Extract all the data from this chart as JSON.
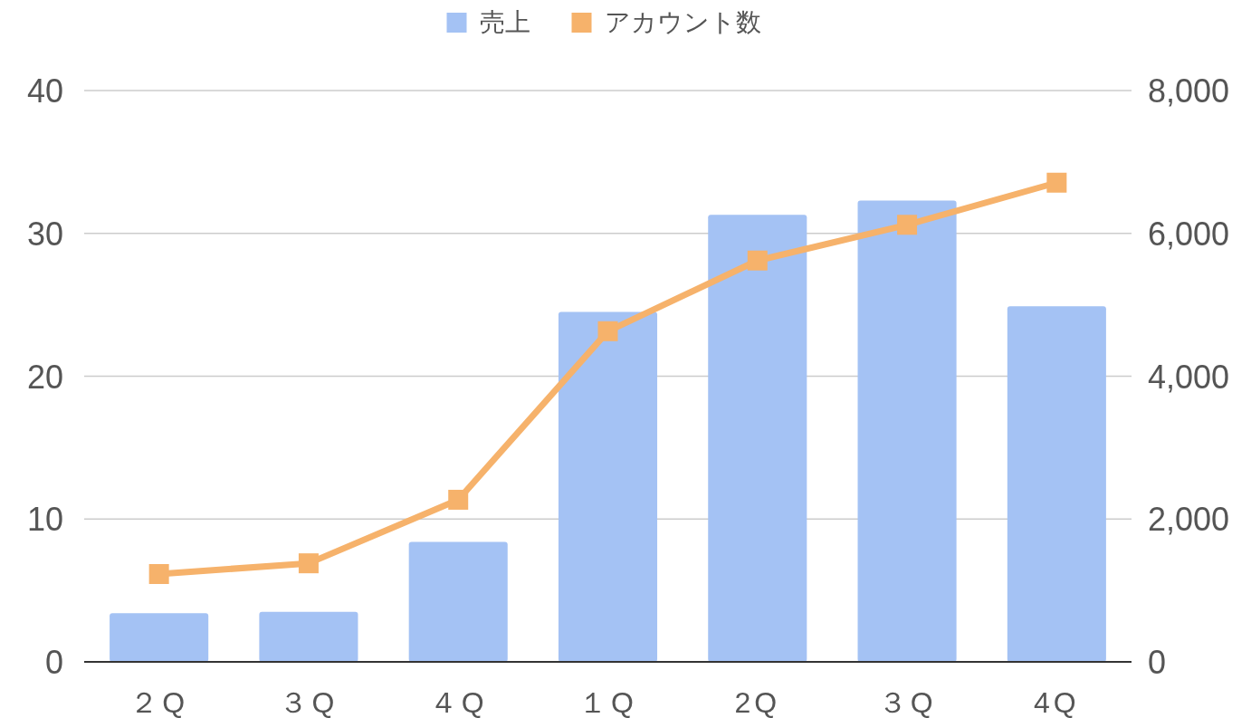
{
  "chart_data": {
    "type": "bar",
    "categories": [
      "２Q",
      "３Q",
      "４Q",
      "１Q",
      "2Q",
      "３Q",
      "4Q"
    ],
    "series": [
      {
        "name": "売上",
        "color": "#a4c2f4",
        "values": [
          3.4,
          3.5,
          8.4,
          24.5,
          31.3,
          32.3,
          24.9
        ]
      },
      {
        "name": "アカウント数",
        "type": "line",
        "axis": "y2",
        "color": "#f6b26b",
        "marker": "square",
        "values": [
          1230,
          1380,
          2270,
          4630,
          5620,
          6120,
          6710
        ]
      }
    ],
    "ylim": [
      0,
      40
    ],
    "yticks": [
      0,
      10,
      20,
      30,
      40
    ],
    "y2lim": [
      0,
      8000
    ],
    "y2ticks": [
      {
        "value": 0,
        "label": "0"
      },
      {
        "value": 2000,
        "label": "2,000"
      },
      {
        "value": 4000,
        "label": "4,000"
      },
      {
        "value": 6000,
        "label": "6,000"
      },
      {
        "value": 8000,
        "label": "8,000"
      }
    ],
    "grid": "y",
    "legend": "top"
  }
}
